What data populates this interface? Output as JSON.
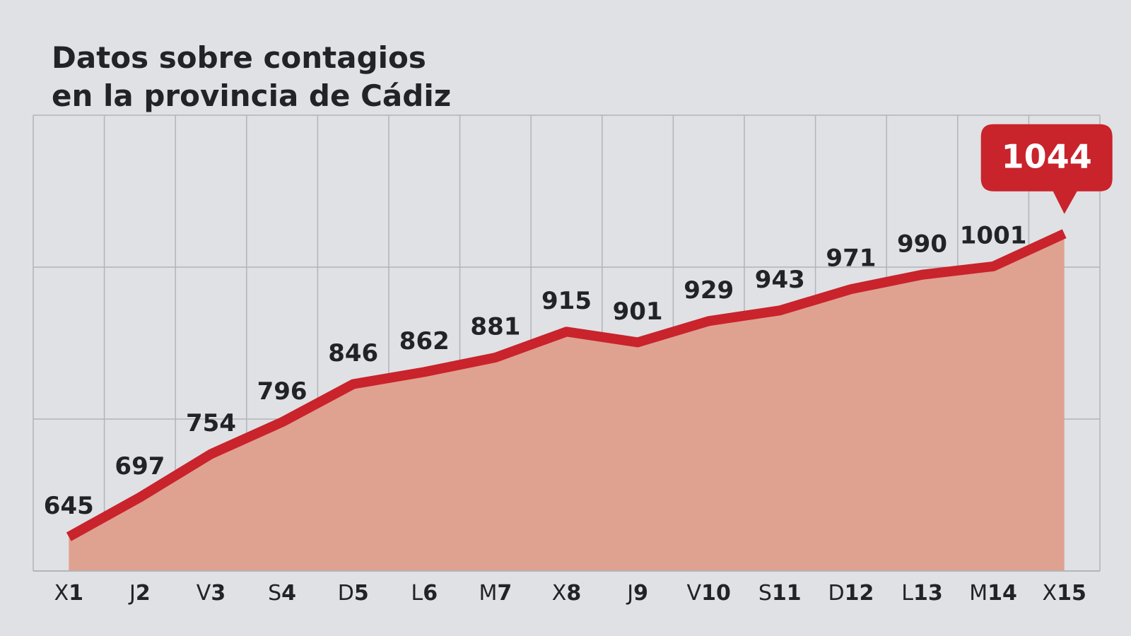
{
  "chart_data": {
    "type": "area-line",
    "title": [
      "Datos sobre contagios",
      "en la provincia de Cádiz"
    ],
    "categories": [
      "X1",
      "J2",
      "V3",
      "S4",
      "D5",
      "L6",
      "M7",
      "X8",
      "J9",
      "V10",
      "S11",
      "D12",
      "L13",
      "M14",
      "X15"
    ],
    "values": [
      645,
      697,
      754,
      796,
      846,
      862,
      881,
      915,
      901,
      929,
      943,
      971,
      990,
      1001,
      1044
    ],
    "color": "#c9232c",
    "fill_color": "#dfa291",
    "ylim": [
      600,
      1200
    ]
  }
}
